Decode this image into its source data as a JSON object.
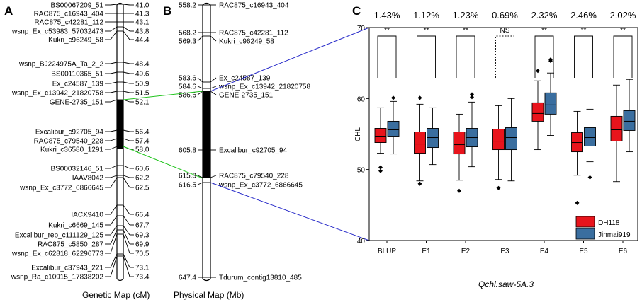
{
  "panels": {
    "a": "A",
    "b": "B",
    "c": "C"
  },
  "genetic_map": {
    "xlabel": "Genetic Map (cM)",
    "markers": [
      {
        "name": "BS00067209_51",
        "pos": "41.0"
      },
      {
        "name": "RAC875_c16943_404",
        "pos": "41.3"
      },
      {
        "name": "RAC875_c42281_112",
        "pos": "43.1"
      },
      {
        "name": "wsnp_Ex_c53983_57032473",
        "pos": "43.8"
      },
      {
        "name": "Kukri_c96249_58",
        "pos": "44.4"
      },
      {
        "name": "wsnp_BJ224975A_Ta_2_2",
        "pos": "48.4"
      },
      {
        "name": "BS00110365_51",
        "pos": "49.6"
      },
      {
        "name": "Ex_c24587_139",
        "pos": "50.9"
      },
      {
        "name": "wsnp_Ex_c13942_21820758",
        "pos": "51.5"
      },
      {
        "name": "GENE-2735_151",
        "pos": "52.1"
      },
      {
        "name": "Excalibur_c92705_94",
        "pos": "56.4"
      },
      {
        "name": "RAC875_c79540_228",
        "pos": "57.4"
      },
      {
        "name": "Kukri_c36580_1291",
        "pos": "58.0"
      },
      {
        "name": "BS00032146_51",
        "pos": "60.6"
      },
      {
        "name": "IAAV8042",
        "pos": "62.2"
      },
      {
        "name": "wsnp_Ex_c3772_6866645",
        "pos": "62.5"
      },
      {
        "name": "IACX9410",
        "pos": "66.4"
      },
      {
        "name": "Kukri_c6669_145",
        "pos": "67.7"
      },
      {
        "name": "Excalibur_rep_c111129_125",
        "pos": "69.3"
      },
      {
        "name": "RAC875_c5850_287",
        "pos": "69.9"
      },
      {
        "name": "wsnp_Ex_c62818_62296773",
        "pos": "70.5"
      },
      {
        "name": "Excalibur_c37943_221",
        "pos": "73.1"
      },
      {
        "name": "wsnp_Ra_c10915_17838202",
        "pos": "73.4"
      }
    ]
  },
  "physical_map": {
    "xlabel": "Physical Map (Mb)",
    "markers": [
      {
        "name": "RAC875_c16943_404",
        "pos": "558.2"
      },
      {
        "name": "RAC875_c42281_112",
        "pos": "568.2"
      },
      {
        "name": "Kukri_c96249_58",
        "pos": "569.3"
      },
      {
        "name": "Ex_c24587_139",
        "pos": "583.6"
      },
      {
        "name": "wsnp_Ex_c13942_21820758",
        "pos": "584.6"
      },
      {
        "name": "GENE-2735_151",
        "pos": "586.6"
      },
      {
        "name": "Excalibur_c92705_94",
        "pos": "605.8"
      },
      {
        "name": "RAC875_c79540_228",
        "pos": "615.3"
      },
      {
        "name": "wsnp_Ex_c3772_6866645",
        "pos": "616.5"
      },
      {
        "name": "Tdurum_contig13810_485",
        "pos": "647.4"
      }
    ]
  },
  "chart_data": {
    "type": "box",
    "ylabel": "CHL",
    "xlabel": "Qchl.saw-5A.3",
    "ylim": [
      40,
      70
    ],
    "yticks": [
      "40",
      "50",
      "60",
      "70"
    ],
    "categories": [
      "BLUP",
      "E1",
      "E2",
      "E3",
      "E4",
      "E5",
      "E6"
    ],
    "percent_labels": [
      "1.43%",
      "1.12%",
      "1.23%",
      "0.69%",
      "2.32%",
      "2.46%",
      "2.02%"
    ],
    "significance": [
      "**",
      "**",
      "**",
      "NS",
      "**",
      "**",
      "**"
    ],
    "legend": [
      {
        "name": "DH118",
        "color": "#e8141c"
      },
      {
        "name": "Jinmai919",
        "color": "#3a6e9f"
      }
    ],
    "series": [
      {
        "name": "DH118",
        "boxes": [
          {
            "min": 52.3,
            "q1": 53.8,
            "median": 54.7,
            "q3": 55.8,
            "max": 58.7,
            "outliers": [
              50.3,
              49.8
            ]
          },
          {
            "min": 48.4,
            "q1": 52.3,
            "median": 53.6,
            "q3": 55.3,
            "max": 59.2,
            "outliers": [
              60.1,
              48.0
            ]
          },
          {
            "min": 48.5,
            "q1": 52.2,
            "median": 53.5,
            "q3": 55.3,
            "max": 57.8,
            "outliers": [
              47.0
            ]
          },
          {
            "min": 48.6,
            "q1": 52.8,
            "median": 54.0,
            "q3": 55.7,
            "max": 59.0,
            "outliers": [
              47.4
            ]
          },
          {
            "min": 52.8,
            "q1": 56.8,
            "median": 57.9,
            "q3": 59.4,
            "max": 62.5,
            "outliers": [
              63.9
            ]
          },
          {
            "min": 49.2,
            "q1": 52.5,
            "median": 53.8,
            "q3": 55.2,
            "max": 58.2,
            "outliers": [
              45.3
            ]
          },
          {
            "min": 48.3,
            "q1": 54.0,
            "median": 55.6,
            "q3": 57.5,
            "max": 61.9,
            "outliers": []
          }
        ]
      },
      {
        "name": "Jinmai919",
        "boxes": [
          {
            "min": 52.2,
            "q1": 54.7,
            "median": 55.6,
            "q3": 56.8,
            "max": 59.6,
            "outliers": [
              60.1
            ]
          },
          {
            "min": 50.7,
            "q1": 53.1,
            "median": 54.5,
            "q3": 55.8,
            "max": 58.7,
            "outliers": []
          },
          {
            "min": 50.4,
            "q1": 53.2,
            "median": 54.5,
            "q3": 55.8,
            "max": 59.5,
            "outliers": [
              60.6,
              60.2
            ]
          },
          {
            "min": 48.4,
            "q1": 52.8,
            "median": 54.5,
            "q3": 55.9,
            "max": 60.0,
            "outliers": []
          },
          {
            "min": 54.8,
            "q1": 57.8,
            "median": 59.1,
            "q3": 60.8,
            "max": 63.6,
            "outliers": [
              65.3,
              65.5
            ]
          },
          {
            "min": 51.1,
            "q1": 53.3,
            "median": 54.5,
            "q3": 55.9,
            "max": 58.5,
            "outliers": [
              48.9
            ]
          },
          {
            "min": 52.5,
            "q1": 55.5,
            "median": 56.8,
            "q3": 58.3,
            "max": 62.7,
            "outliers": []
          }
        ]
      }
    ]
  }
}
